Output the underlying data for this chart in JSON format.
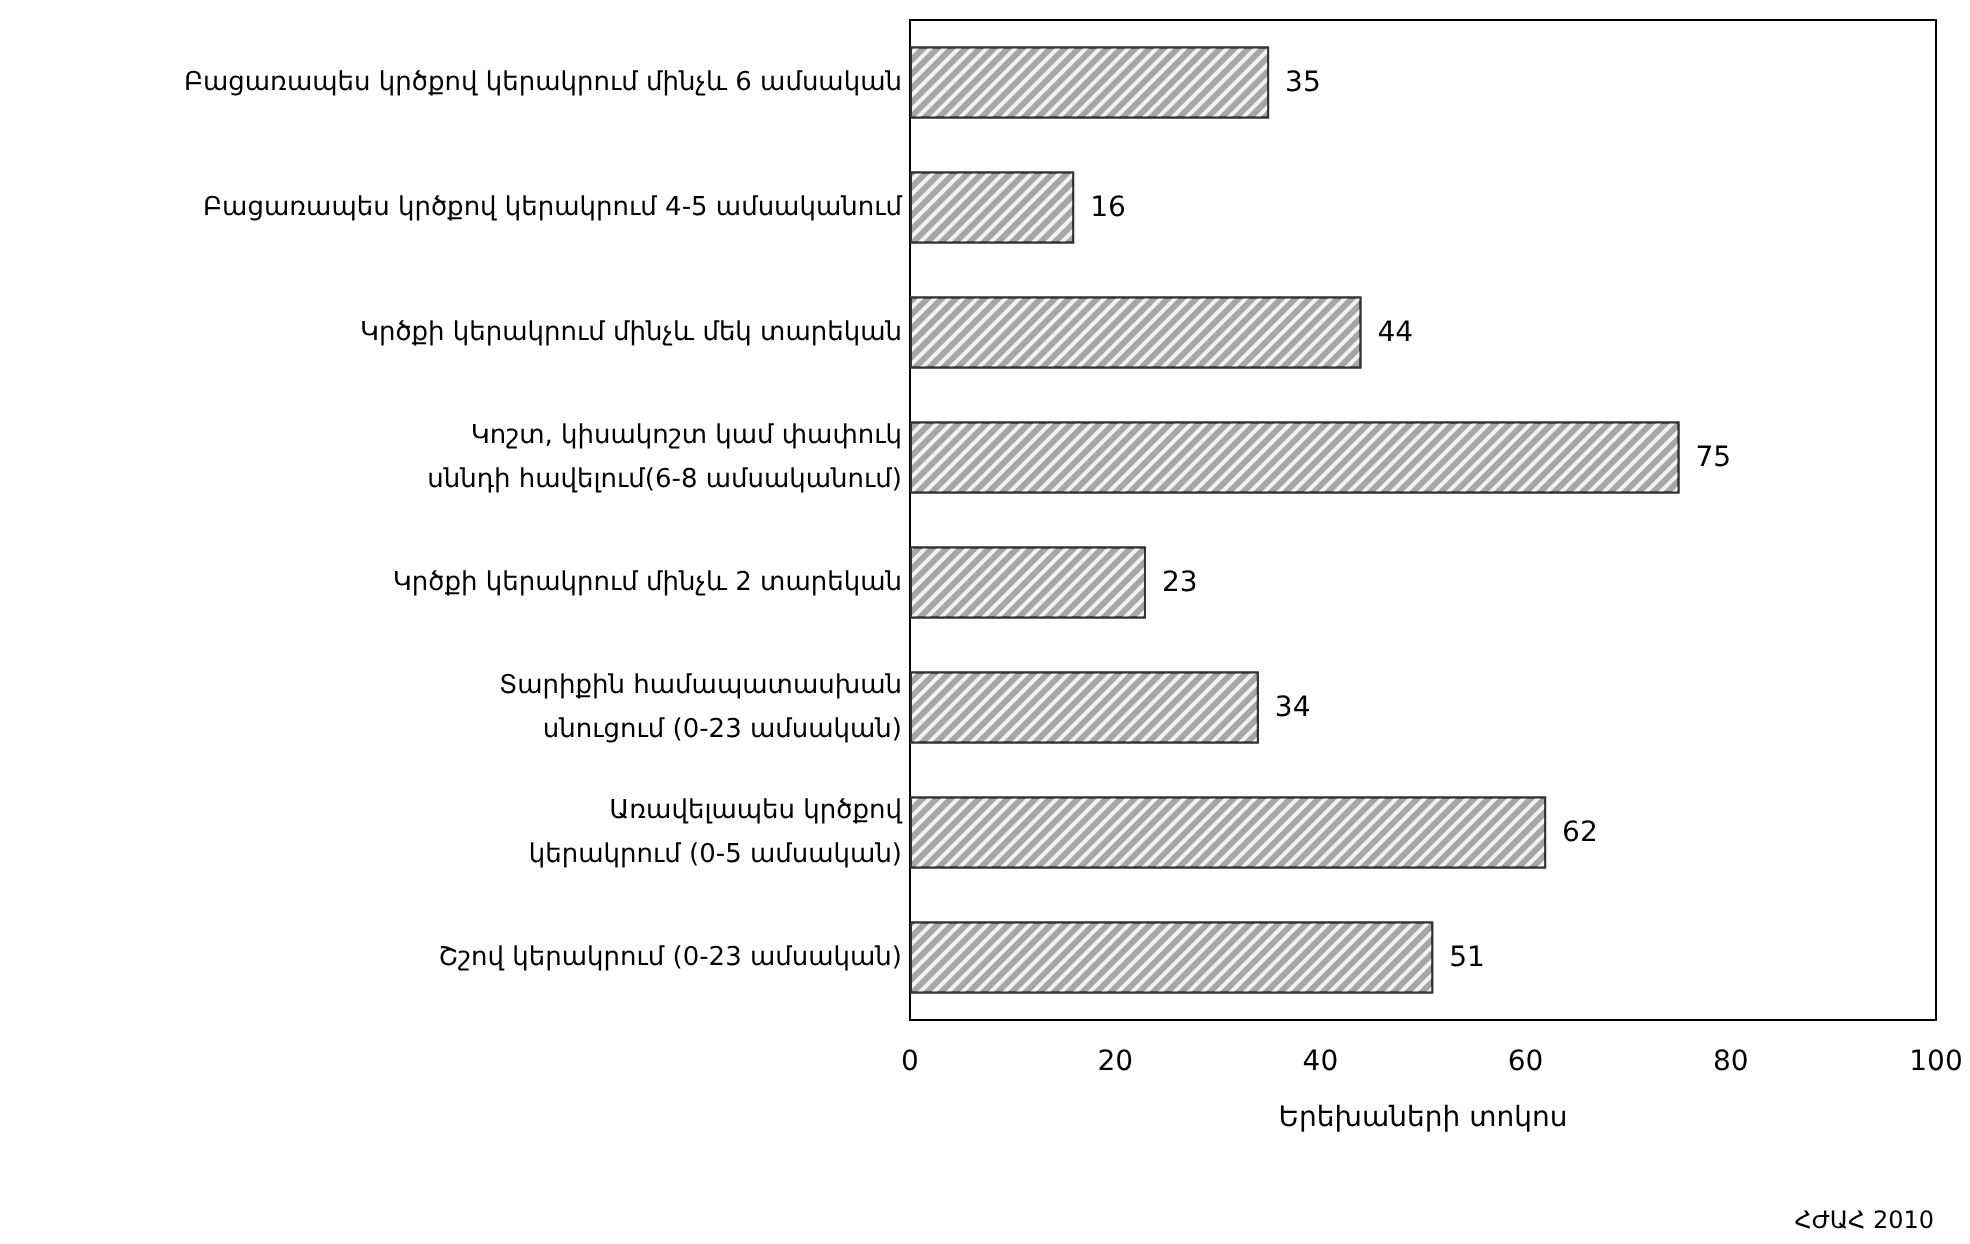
{
  "chart_data": {
    "type": "bar",
    "orientation": "horizontal",
    "categories": [
      "Բացառապես կրծքով կերակրում մինչև 6 ամսական",
      "Բացառապես կրծքով կերակրում 4-5 ամսականում",
      "Կրծքի կերակրում մինչև մեկ տարեկան",
      "Կոշտ, կիսակոշտ կամ փափուկ\nսննդի հավելում(6-8 ամսականում)",
      "Կրծքի կերակրում մինչև 2 տարեկան",
      "Տարիքին համապատասխան\nսնուցում (0-23 ամսական)",
      "Առավելապես կրծքով\nկերակրում (0-5 ամսական)",
      "Շշով կերակրում (0-23 ամսական)"
    ],
    "values": [
      35,
      16,
      44,
      75,
      23,
      34,
      62,
      51
    ],
    "color": "#a6a6a6",
    "xlabel": "Երեխաների տոկոս",
    "xlim": [
      0,
      100
    ],
    "xticks": [
      0,
      20,
      40,
      60,
      80,
      100
    ],
    "data_labels": true,
    "annotations": [
      "ՀԺԱՀ 2010"
    ]
  }
}
